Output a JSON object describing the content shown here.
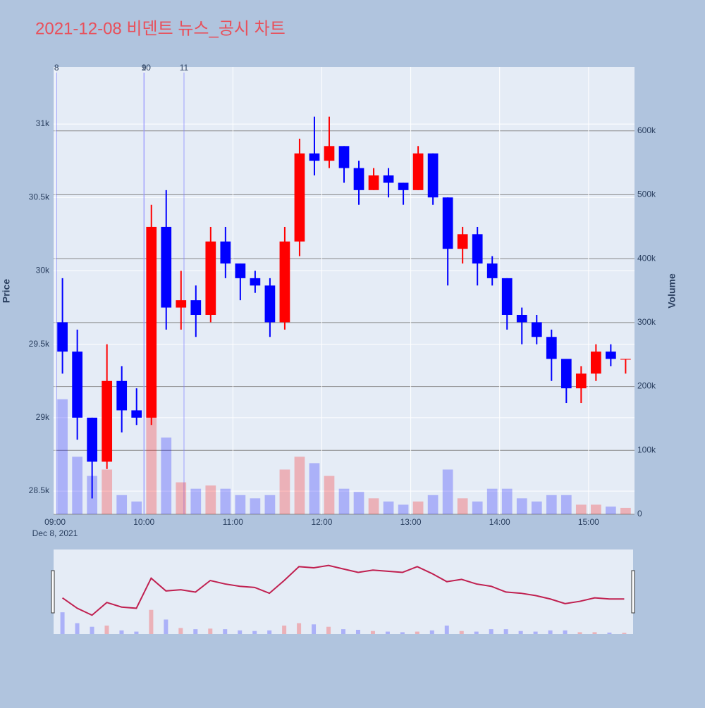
{
  "chart_data": {
    "type": "candlestick",
    "title": "2021-12-08 비덴트 뉴스_공시 차트",
    "y_label": "Price",
    "y2_label": "Volume",
    "x_sublabel": "Dec 8, 2021",
    "x": [
      "09:00",
      "09:10",
      "09:20",
      "09:30",
      "09:40",
      "09:50",
      "10:00",
      "10:10",
      "10:20",
      "10:30",
      "10:40",
      "10:50",
      "11:00",
      "11:10",
      "11:20",
      "11:30",
      "11:40",
      "11:50",
      "12:00",
      "12:10",
      "12:20",
      "12:30",
      "12:40",
      "12:50",
      "13:00",
      "13:10",
      "13:20",
      "13:30",
      "13:40",
      "13:50",
      "14:00",
      "14:10",
      "14:20",
      "14:30",
      "14:40",
      "14:50",
      "15:00",
      "15:10",
      "15:20"
    ],
    "open": [
      29650,
      29450,
      29000,
      28700,
      29250,
      29050,
      29000,
      30300,
      29750,
      29800,
      29700,
      30200,
      30050,
      29950,
      29900,
      29650,
      30200,
      30800,
      30750,
      30850,
      30700,
      30550,
      30650,
      30600,
      30550,
      30800,
      30500,
      30150,
      30250,
      30050,
      29950,
      29700,
      29650,
      29550,
      29400,
      29200,
      29300,
      29450,
      29400
    ],
    "high": [
      29950,
      29600,
      29000,
      29500,
      29350,
      29200,
      30450,
      30550,
      30000,
      29900,
      30300,
      30300,
      30050,
      30000,
      29950,
      30300,
      30900,
      31050,
      31050,
      30850,
      30750,
      30700,
      30700,
      30600,
      30850,
      30800,
      30500,
      30300,
      30300,
      30100,
      29950,
      29750,
      29700,
      29600,
      29400,
      29350,
      29500,
      29500,
      29400
    ],
    "low": [
      29300,
      28850,
      28450,
      28650,
      28900,
      28950,
      28950,
      29600,
      29600,
      29550,
      29650,
      29950,
      29800,
      29850,
      29550,
      29600,
      30100,
      30650,
      30700,
      30600,
      30450,
      30550,
      30500,
      30450,
      30550,
      30450,
      29900,
      30050,
      29900,
      29900,
      29600,
      29500,
      29500,
      29250,
      29100,
      29100,
      29250,
      29350,
      29300
    ],
    "close": [
      29450,
      29000,
      28700,
      29250,
      29050,
      29000,
      30300,
      29750,
      29800,
      29700,
      30200,
      30050,
      29950,
      29900,
      29650,
      30200,
      30800,
      30750,
      30850,
      30700,
      30550,
      30650,
      30600,
      30550,
      30800,
      30500,
      30150,
      30250,
      30050,
      29950,
      29700,
      29650,
      29550,
      29400,
      29200,
      29300,
      29450,
      29400,
      29400
    ],
    "volume": [
      180000,
      90000,
      60000,
      70000,
      30000,
      20000,
      200000,
      120000,
      50000,
      40000,
      45000,
      40000,
      30000,
      25000,
      30000,
      70000,
      90000,
      80000,
      60000,
      40000,
      35000,
      25000,
      20000,
      15000,
      20000,
      30000,
      70000,
      25000,
      20000,
      40000,
      40000,
      25000,
      20000,
      30000,
      30000,
      15000,
      15000,
      12000,
      10000
    ],
    "increasing_color": "#ff0000",
    "decreasing_color": "#0000ff",
    "xlim": [
      "08:59",
      "15:31"
    ],
    "xticks": [
      "09:00",
      "10:00",
      "11:00",
      "12:00",
      "13:00",
      "14:00",
      "15:00"
    ],
    "ylim": [
      28342,
      31389
    ],
    "yticks": [
      {
        "value": 28500,
        "label": "28.5k"
      },
      {
        "value": 29000,
        "label": "29k"
      },
      {
        "value": 29500,
        "label": "29.5k"
      },
      {
        "value": 30000,
        "label": "30k"
      },
      {
        "value": 30500,
        "label": "30.5k"
      },
      {
        "value": 31000,
        "label": "31k"
      }
    ],
    "y2lim": [
      0,
      700000
    ],
    "y2ticks": [
      0,
      {
        "value": 100000,
        "label": "100k"
      },
      {
        "value": 200000,
        "label": "200k"
      },
      {
        "value": 300000,
        "label": "300k"
      },
      {
        "value": 400000,
        "label": "400k"
      },
      {
        "value": 500000,
        "label": "500k"
      },
      {
        "value": 600000,
        "label": "600k"
      }
    ],
    "events": [
      {
        "x": "09:01",
        "label": "8"
      },
      {
        "x": "10:00",
        "label": "9"
      },
      {
        "x": "10:00",
        "label": "10"
      },
      {
        "x": "10:27",
        "label": "11"
      }
    ]
  }
}
